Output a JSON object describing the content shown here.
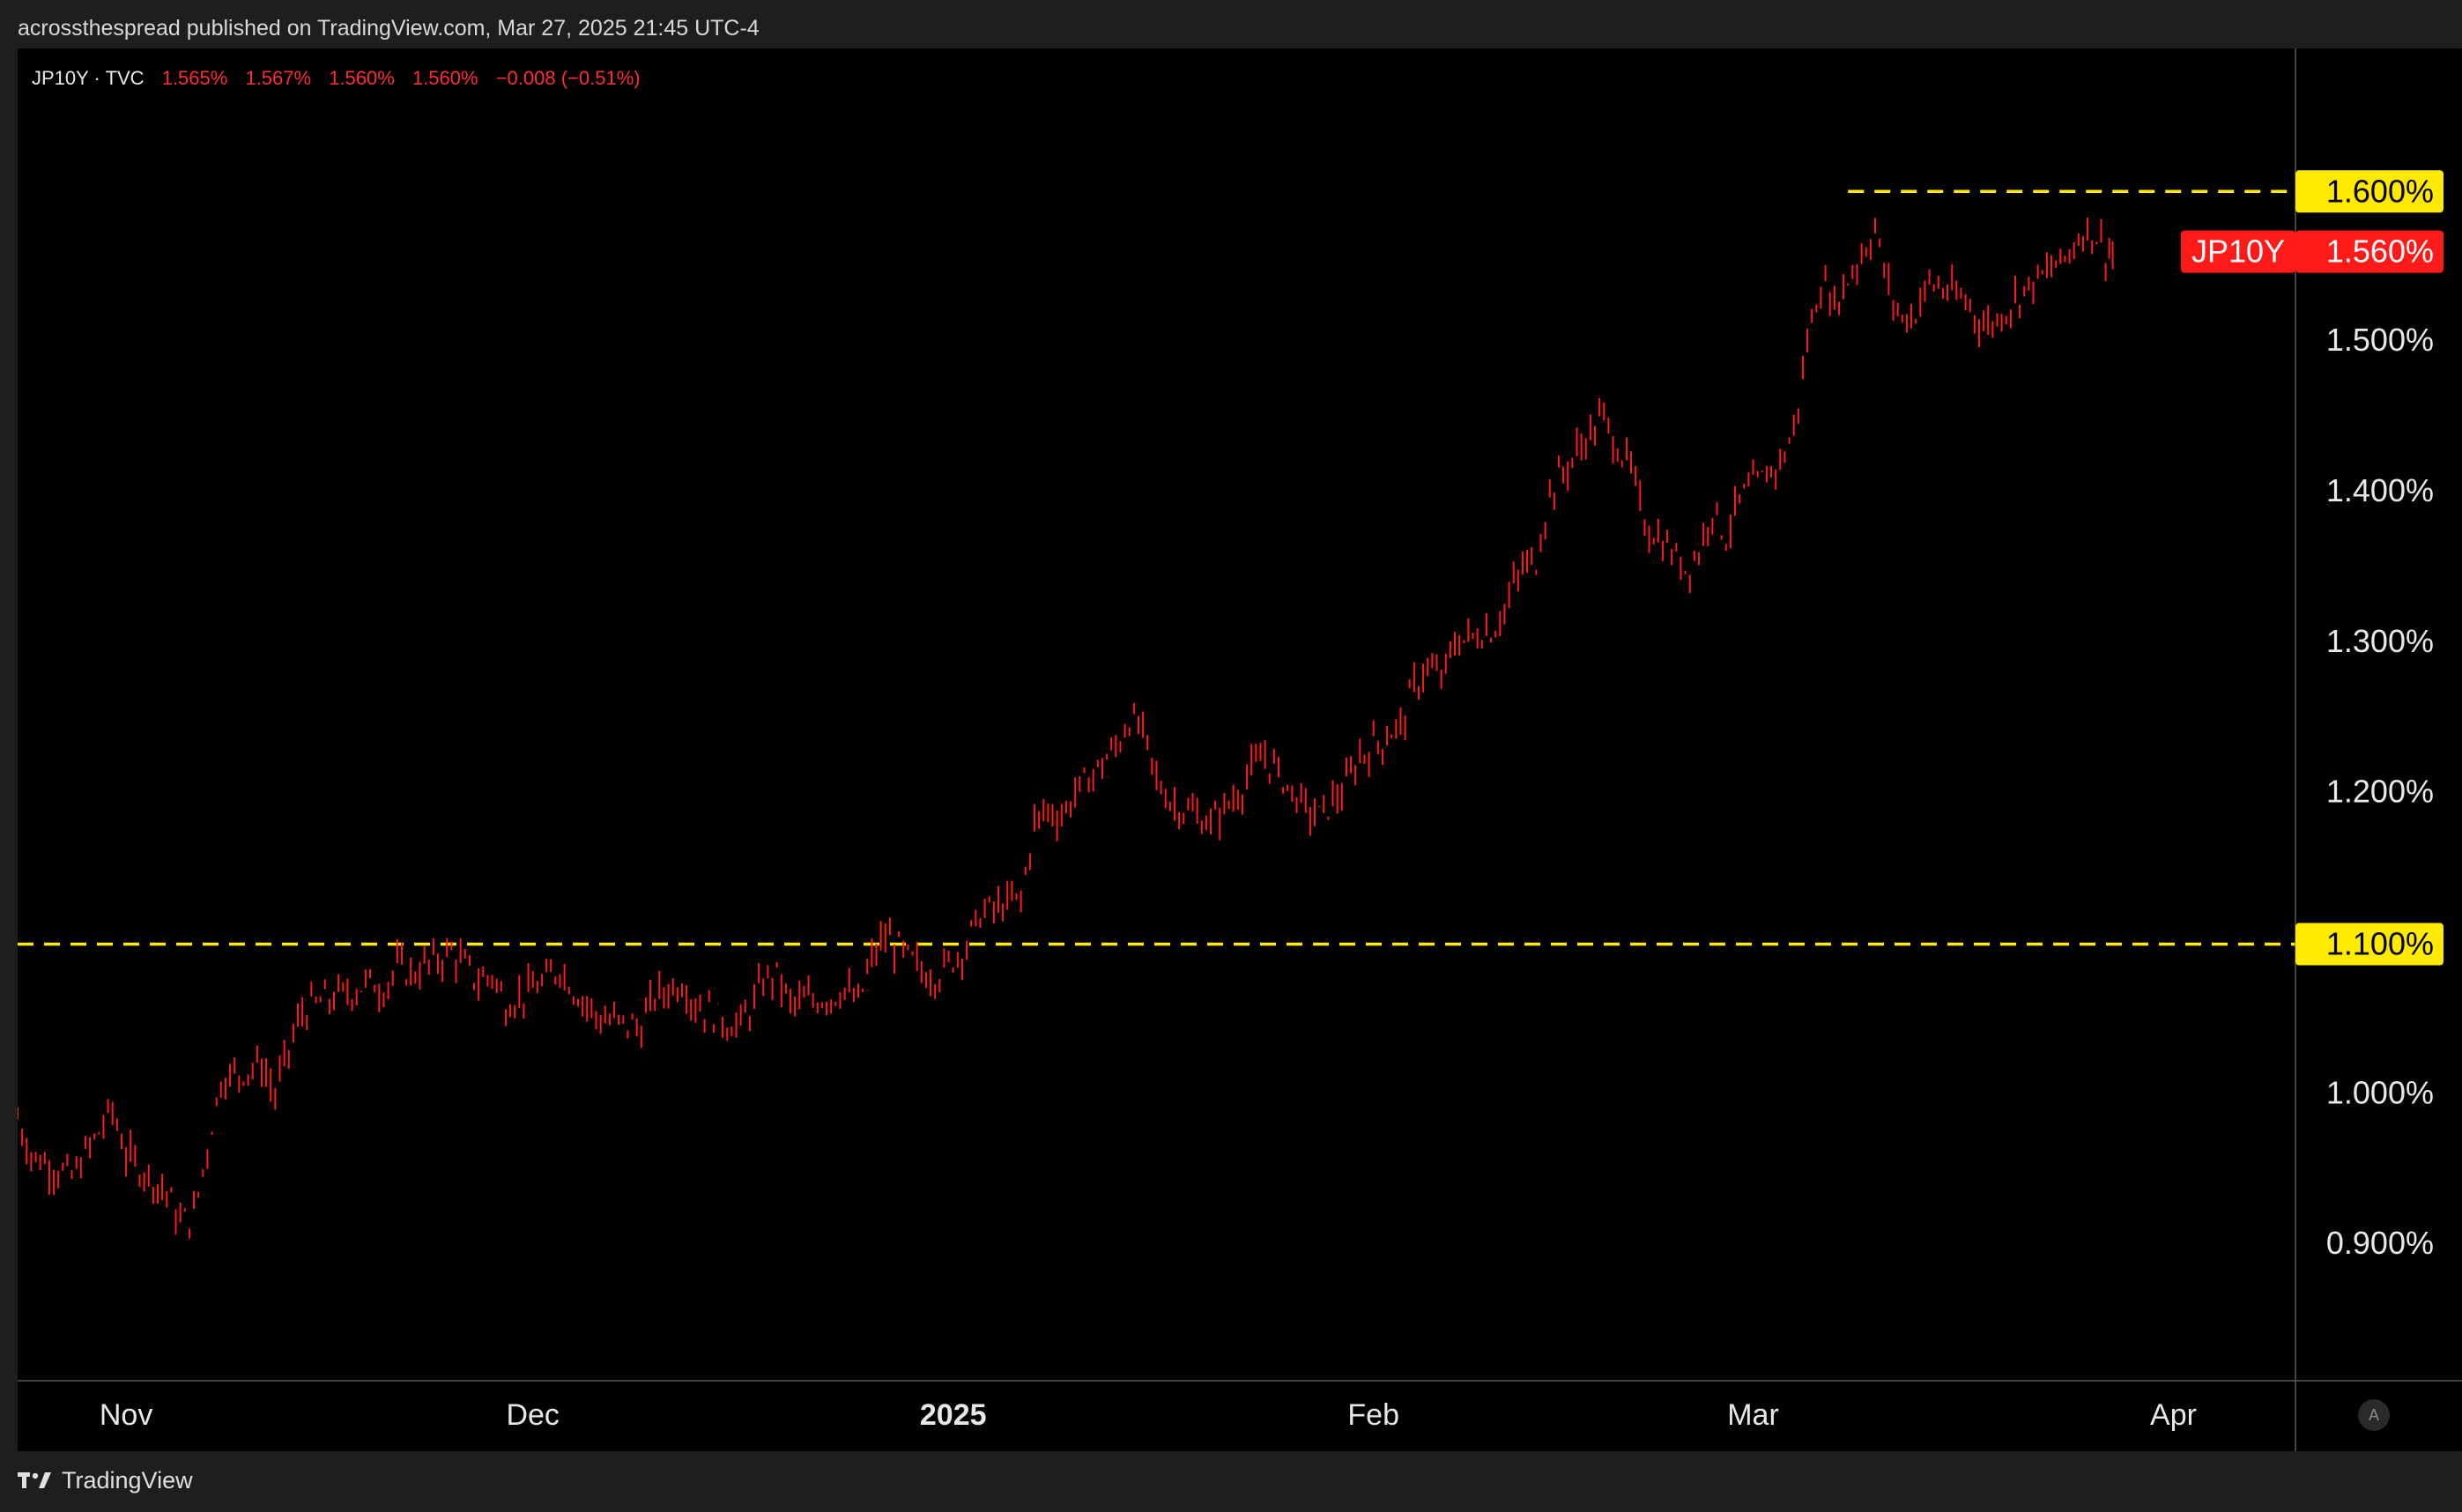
{
  "header": {
    "published_text": "acrossthespread published on TradingView.com, Mar 27, 2025 21:45 UTC-4"
  },
  "legend": {
    "symbol": "JP10Y · TVC",
    "open": "1.565%",
    "high": "1.567%",
    "low": "1.560%",
    "close": "1.560%",
    "change": "−0.008 (−0.51%)"
  },
  "footer": {
    "brand": "TradingView",
    "auto_label": "A"
  },
  "colors": {
    "background": "#000000",
    "frame": "#1e1e1e",
    "series": "#ff1a1a",
    "level_line": "#ffea00",
    "axis_text": "#e8e8e8"
  },
  "chart_data": {
    "type": "bar",
    "subtype": "ohlc",
    "symbol_label": "JP10Y",
    "last_value": 1.56,
    "last_value_label": "1.560%",
    "x_axis": {
      "type": "date",
      "range": [
        "2024-10-24",
        "2025-04-10"
      ],
      "ticks": [
        {
          "label": "Nov",
          "date": "2024-11-01",
          "bold": false
        },
        {
          "label": "Dec",
          "date": "2024-12-01",
          "bold": false
        },
        {
          "label": "2025",
          "date": "2025-01-01",
          "bold": true
        },
        {
          "label": "Feb",
          "date": "2025-02-01",
          "bold": false
        },
        {
          "label": "Mar",
          "date": "2025-03-01",
          "bold": false
        },
        {
          "label": "Apr",
          "date": "2025-04-01",
          "bold": false
        }
      ]
    },
    "y_axis": {
      "unit": "%",
      "range": [
        0.81,
        1.695
      ],
      "ticks": [
        {
          "value": 1.5,
          "label": "1.500%"
        },
        {
          "value": 1.4,
          "label": "1.400%"
        },
        {
          "value": 1.3,
          "label": "1.300%"
        },
        {
          "value": 1.2,
          "label": "1.200%"
        },
        {
          "value": 1.0,
          "label": "1.000%"
        },
        {
          "value": 0.9,
          "label": "0.900%"
        }
      ]
    },
    "horizontal_levels": [
      {
        "value": 1.6,
        "label": "1.600%",
        "start_date": "2025-03-08"
      },
      {
        "value": 1.1,
        "label": "1.100%",
        "start_date": "2024-10-24"
      }
    ],
    "series": [
      {
        "points": [
          [
            "2024-10-24",
            0.985
          ],
          [
            "2024-10-25",
            0.96
          ],
          [
            "2024-10-28",
            0.945
          ],
          [
            "2024-10-30",
            0.975
          ],
          [
            "2024-10-31",
            0.99
          ],
          [
            "2024-11-01",
            0.96
          ],
          [
            "2024-11-04",
            0.935
          ],
          [
            "2024-11-05",
            0.915
          ],
          [
            "2024-11-06",
            0.92
          ],
          [
            "2024-11-07",
            0.965
          ],
          [
            "2024-11-08",
            1.01
          ],
          [
            "2024-11-11",
            1.02
          ],
          [
            "2024-11-12",
            1.0
          ],
          [
            "2024-11-13",
            1.03
          ],
          [
            "2024-11-14",
            1.055
          ],
          [
            "2024-11-15",
            1.06
          ],
          [
            "2024-11-18",
            1.07
          ],
          [
            "2024-11-19",
            1.075
          ],
          [
            "2024-11-20",
            1.07
          ],
          [
            "2024-11-21",
            1.085
          ],
          [
            "2024-11-22",
            1.08
          ],
          [
            "2024-11-25",
            1.095
          ],
          [
            "2024-11-26",
            1.085
          ],
          [
            "2024-11-27",
            1.075
          ],
          [
            "2024-11-28",
            1.08
          ],
          [
            "2024-11-29",
            1.06
          ],
          [
            "2024-12-02",
            1.075
          ],
          [
            "2024-12-03",
            1.085
          ],
          [
            "2024-12-04",
            1.07
          ],
          [
            "2024-12-05",
            1.06
          ],
          [
            "2024-12-06",
            1.05
          ],
          [
            "2024-12-09",
            1.045
          ],
          [
            "2024-12-10",
            1.065
          ],
          [
            "2024-12-11",
            1.07
          ],
          [
            "2024-12-12",
            1.075
          ],
          [
            "2024-12-13",
            1.06
          ],
          [
            "2024-12-16",
            1.045
          ],
          [
            "2024-12-17",
            1.055
          ],
          [
            "2024-12-18",
            1.075
          ],
          [
            "2024-12-19",
            1.08
          ],
          [
            "2024-12-20",
            1.06
          ],
          [
            "2024-12-23",
            1.065
          ],
          [
            "2024-12-24",
            1.07
          ],
          [
            "2024-12-25",
            1.06
          ],
          [
            "2024-12-26",
            1.09
          ],
          [
            "2024-12-27",
            1.105
          ],
          [
            "2024-12-30",
            1.08
          ],
          [
            "2024-12-31",
            1.08
          ],
          [
            "2025-01-02",
            1.1
          ],
          [
            "2025-01-03",
            1.12
          ],
          [
            "2025-01-06",
            1.13
          ],
          [
            "2025-01-07",
            1.18
          ],
          [
            "2025-01-08",
            1.19
          ],
          [
            "2025-01-09",
            1.185
          ],
          [
            "2025-01-10",
            1.2
          ],
          [
            "2025-01-13",
            1.23
          ],
          [
            "2025-01-14",
            1.25
          ],
          [
            "2025-01-15",
            1.24
          ],
          [
            "2025-01-16",
            1.21
          ],
          [
            "2025-01-17",
            1.195
          ],
          [
            "2025-01-20",
            1.18
          ],
          [
            "2025-01-21",
            1.19
          ],
          [
            "2025-01-22",
            1.2
          ],
          [
            "2025-01-23",
            1.215
          ],
          [
            "2025-01-24",
            1.225
          ],
          [
            "2025-01-27",
            1.19
          ],
          [
            "2025-01-28",
            1.185
          ],
          [
            "2025-01-29",
            1.195
          ],
          [
            "2025-01-30",
            1.205
          ],
          [
            "2025-01-31",
            1.225
          ],
          [
            "2025-02-03",
            1.245
          ],
          [
            "2025-02-04",
            1.27
          ],
          [
            "2025-02-05",
            1.285
          ],
          [
            "2025-02-06",
            1.275
          ],
          [
            "2025-02-07",
            1.3
          ],
          [
            "2025-02-10",
            1.31
          ],
          [
            "2025-02-11",
            1.33
          ],
          [
            "2025-02-12",
            1.35
          ],
          [
            "2025-02-13",
            1.355
          ],
          [
            "2025-02-14",
            1.4
          ],
          [
            "2025-02-17",
            1.44
          ],
          [
            "2025-02-18",
            1.45
          ],
          [
            "2025-02-19",
            1.43
          ],
          [
            "2025-02-20",
            1.415
          ],
          [
            "2025-02-21",
            1.38
          ],
          [
            "2025-02-24",
            1.35
          ],
          [
            "2025-02-25",
            1.36
          ],
          [
            "2025-02-26",
            1.39
          ],
          [
            "2025-02-27",
            1.37
          ],
          [
            "2025-02-28",
            1.395
          ],
          [
            "2025-03-03",
            1.42
          ],
          [
            "2025-03-04",
            1.44
          ],
          [
            "2025-03-05",
            1.5
          ],
          [
            "2025-03-06",
            1.54
          ],
          [
            "2025-03-07",
            1.525
          ],
          [
            "2025-03-10",
            1.575
          ],
          [
            "2025-03-11",
            1.535
          ],
          [
            "2025-03-12",
            1.515
          ],
          [
            "2025-03-13",
            1.52
          ],
          [
            "2025-03-14",
            1.54
          ],
          [
            "2025-03-17",
            1.525
          ],
          [
            "2025-03-18",
            1.51
          ],
          [
            "2025-03-19",
            1.515
          ],
          [
            "2025-03-20",
            1.525
          ],
          [
            "2025-03-21",
            1.535
          ],
          [
            "2025-03-24",
            1.555
          ],
          [
            "2025-03-25",
            1.57
          ],
          [
            "2025-03-26",
            1.575
          ],
          [
            "2025-03-27",
            1.56
          ]
        ]
      }
    ]
  }
}
